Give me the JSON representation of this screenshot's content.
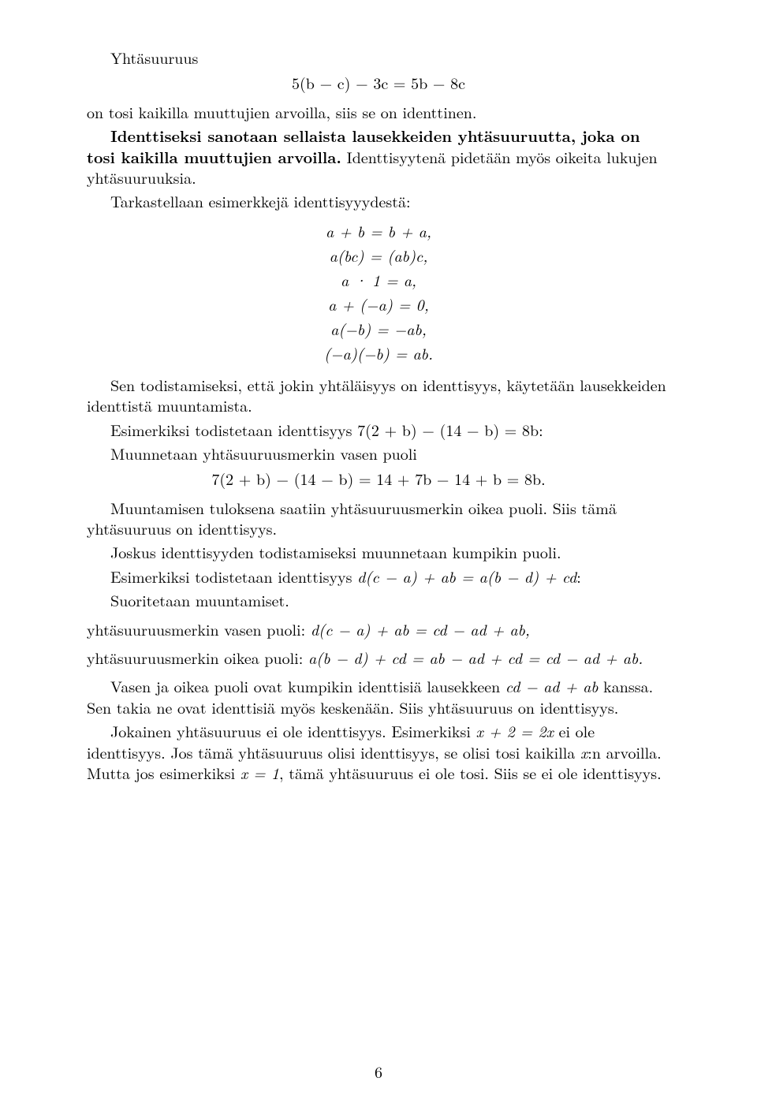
{
  "p1": "Yhtäsuuruus",
  "eq1": "5(b − c) − 3c = 5b − 8c",
  "p2": "on tosi kaikilla muuttujien arvoilla, siis se on identtinen.",
  "p3a": "Identtiseksi sanotaan sellaista lausekkeiden yhtäsuuruutta, joka on tosi kaikilla muuttujien arvoilla.",
  "p3b": " Identtisyytenä pidetään myös oikeita lukujen yhtäsuuruuksia.",
  "p4": "Tarkastellaan esimerkkejä identtisyyydestä:",
  "stack1": {
    "l1": "a + b = b + a,",
    "l2": "a(bc) = (ab)c,",
    "l3": "a · 1 = a,",
    "l4": "a + (−a) = 0,",
    "l5": "a(−b) = −ab,",
    "l6": "(−a)(−b) = ab."
  },
  "p5": "Sen todistamiseksi, että jokin yhtäläisyys on identtisyys, käytetään lausekkeiden identtistä muuntamista.",
  "p6a": "Esimerkiksi todistetaan identtisyys ",
  "p6m": "7(2 + b) − (14 − b) = 8b",
  "p6b": ":",
  "p7": "Muunnetaan yhtäsuuruusmerkin vasen puoli",
  "eq2": "7(2 + b) − (14 − b) = 14 + 7b − 14 + b = 8b.",
  "p8": "Muuntamisen tuloksena saatiin yhtäsuuruusmerkin oikea puoli. Siis tämä yhtäsuuruus on identtisyys.",
  "p9": "Joskus identtisyyden todistamiseksi muunnetaan kumpikin puoli.",
  "p10a": "Esimerkiksi todistetaan identtisyys ",
  "p10m": "d(c − a) + ab = a(b − d) + cd",
  "p10b": ":",
  "p11": "Suoritetaan muuntamiset.",
  "line1a": "yhtäsuuruusmerkin vasen puoli: ",
  "line1m": "d(c − a) + ab = cd − ad + ab,",
  "line2a": "yhtäsuuruusmerkin oikea puoli: ",
  "line2m": "a(b − d) + cd = ab − ad + cd = cd − ad + ab.",
  "p12a": "Vasen ja oikea puoli ovat kumpikin identtisiä lausekkeen ",
  "p12m": "cd − ad + ab",
  "p12b": " kanssa. Sen takia ne ovat identtisiä myös keskenään. Siis yhtäsuuruus on identtisyys.",
  "p13a": "Jokainen yhtäsuuruus ei ole identtisyys. Esimerkiksi ",
  "p13m": "x + 2 = 2x",
  "p13b": " ei ole identtisyys. Jos tämä yhtäsuuruus olisi identtisyys, se olisi tosi kaikilla ",
  "p13c": "x",
  "p13d": ":n arvoilla. Mutta jos esimerkiksi ",
  "p13e": "x = 1",
  "p13f": ", tämä yhtäsuuruus ei ole tosi. Siis se ei ole identtisyys.",
  "pagenum": "6"
}
